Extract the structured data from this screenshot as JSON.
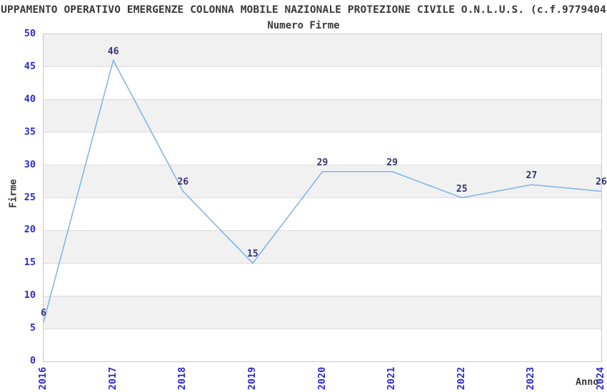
{
  "header": {
    "title": "UPPAMENTO OPERATIVO EMERGENZE COLONNA MOBILE NAZIONALE PROTEZIONE CIVILE O.N.L.U.S. (c.f.9779404",
    "subtitle": "Numero Firme"
  },
  "chart_data": {
    "type": "line",
    "title": "Numero Firme",
    "categories": [
      "2016",
      "2017",
      "2018",
      "2019",
      "2020",
      "2021",
      "2022",
      "2023",
      "2024"
    ],
    "values": [
      6,
      46,
      26,
      15,
      29,
      29,
      25,
      27,
      26
    ],
    "xlabel": "Anno",
    "ylabel": "Firme",
    "ylim": [
      0,
      50
    ],
    "ytick_step": 5,
    "grid": "horizontal-bands",
    "legend": "none",
    "colors": {
      "line": "#7eb2e8",
      "tick_labels": "#2b2bd0",
      "value_labels": "#333377",
      "band": "#f1f1f1",
      "gridline": "#dcdcdc",
      "plot_border": "#c9c9c9",
      "text": "#383838"
    }
  }
}
